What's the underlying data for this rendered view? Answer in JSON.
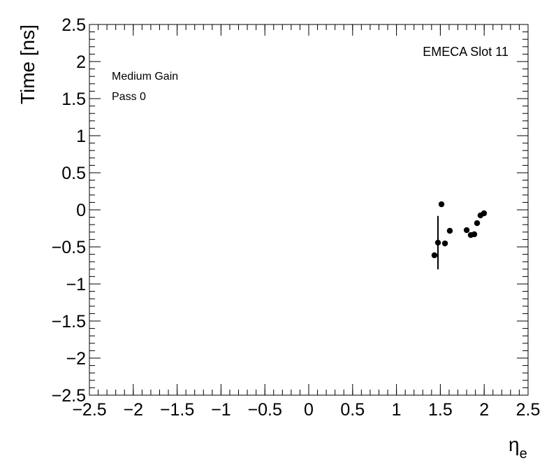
{
  "chart_data": {
    "type": "scatter",
    "annotations": [
      "EMECA Slot 11",
      "Medium Gain",
      "Pass 0"
    ],
    "xlabel": {
      "main": "η",
      "sub": "e"
    },
    "ylabel": "Time [ns]",
    "color": "#000000",
    "x": [
      1.433,
      1.473,
      1.513,
      1.553,
      1.608,
      1.8,
      1.847,
      1.887,
      1.919,
      1.958,
      1.998
    ],
    "y": [
      -0.613,
      -0.443,
      0.075,
      -0.453,
      -0.283,
      -0.274,
      -0.34,
      -0.33,
      -0.18,
      -0.075,
      -0.047
    ],
    "errors": [
      0,
      0.36,
      0,
      0,
      0,
      0,
      0,
      0,
      0,
      0,
      0
    ],
    "xlim": [
      -2.5,
      2.5
    ],
    "ylim": [
      -2.5,
      2.5
    ],
    "xticks": [
      {
        "value": -2.5,
        "label": "−2.5"
      },
      {
        "value": -2,
        "label": "−2"
      },
      {
        "value": -1.5,
        "label": "−1.5"
      },
      {
        "value": -1,
        "label": "−1"
      },
      {
        "value": -0.5,
        "label": "−0.5"
      },
      0,
      0.5,
      1,
      1.5,
      2,
      2.5
    ],
    "yticks": [
      {
        "value": -2.5,
        "label": "−2.5"
      },
      {
        "value": -2,
        "label": "−2"
      },
      {
        "value": -1.5,
        "label": "−1.5"
      },
      {
        "value": -1,
        "label": "−1"
      },
      {
        "value": -0.5,
        "label": "−0.5"
      },
      0,
      0.5,
      1,
      1.5,
      2,
      2.5
    ]
  }
}
